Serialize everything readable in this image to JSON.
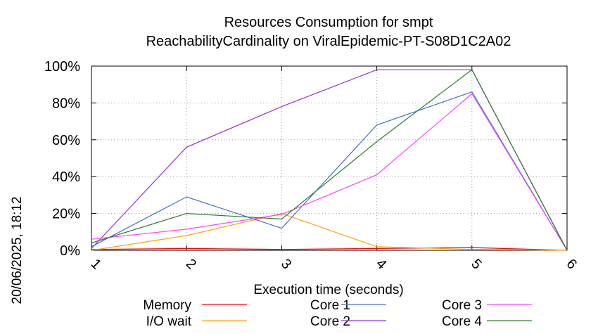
{
  "chart_data": {
    "type": "line",
    "title": "Resources Consumption for smpt",
    "subtitle": "ReachabilityCardinality on ViralEpidemic-PT-S08D1C2A02",
    "xlabel": "Execution time (seconds)",
    "ylabel": "",
    "side_label": "20/06/2025, 18:12",
    "x": [
      1,
      2,
      3,
      4,
      5,
      6
    ],
    "xlim": [
      1,
      6
    ],
    "ylim": [
      0,
      100
    ],
    "xticks": [
      "1",
      "2",
      "3",
      "4",
      "5",
      "6"
    ],
    "yticks": [
      "0%",
      "20%",
      "40%",
      "60%",
      "80%",
      "100%"
    ],
    "grid": true,
    "legend_position": "bottom",
    "series": [
      {
        "name": "Memory",
        "color": "#ff0000",
        "values": [
          0.5,
          1,
          0.5,
          1,
          1.5,
          0
        ]
      },
      {
        "name": "I/O wait",
        "color": "#ffa500",
        "values": [
          0,
          8,
          20,
          2,
          0.5,
          0
        ]
      },
      {
        "name": "Core 1",
        "color": "#4472c4",
        "values": [
          2,
          29,
          12,
          68,
          86,
          0
        ]
      },
      {
        "name": "Core 2",
        "color": "#9932cc",
        "values": [
          1,
          56,
          78,
          98,
          98,
          0
        ]
      },
      {
        "name": "Core 3",
        "color": "#ff44ff",
        "values": [
          6,
          11.5,
          19.5,
          41,
          85,
          0
        ]
      },
      {
        "name": "Core 4",
        "color": "#2e7d32",
        "values": [
          4,
          20,
          17,
          59,
          98,
          0
        ]
      }
    ]
  }
}
